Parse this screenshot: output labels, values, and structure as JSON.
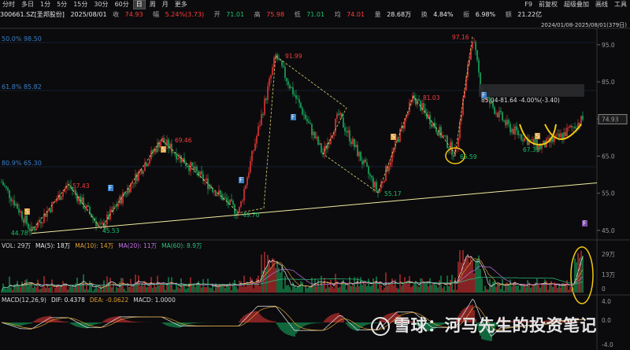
{
  "toolbar": {
    "periods": [
      "分时",
      "多日",
      "1分",
      "5分",
      "15分",
      "30分",
      "60分",
      "日",
      "周",
      "月",
      "更多"
    ],
    "active_period": "日",
    "right_menu": [
      "F9",
      "前复权",
      "超级叠加",
      "画线",
      "工具"
    ]
  },
  "info": {
    "code": "300661.SZ[圣邦股份]",
    "date": "2025/08/01",
    "close_label": "收",
    "close": "74.93",
    "change_label": "幅",
    "change": "5.24%(3.73)",
    "open_label": "开",
    "open": "71.01",
    "high_label": "高",
    "high": "75.98",
    "low_label": "低",
    "low": "71.01",
    "avg_label": "均",
    "avg": "74.01",
    "volume_label": "量",
    "volume": "28.68万",
    "turnover_label": "换",
    "turnover": "4.84%",
    "amplitude_label": "振",
    "amplitude": "6.98%",
    "amount_label": "额",
    "amount": "21.22亿"
  },
  "range_text": "2024/01/08-2025/08/01(379日)",
  "colors": {
    "up": "#ff3b3b",
    "down": "#19c26b",
    "zigzag": "#e8e070",
    "trend": "#f2eda0",
    "highlight": "#f2c811"
  },
  "chart_data": {
    "type": "candlestick",
    "y_axis_ticks": [
      "95.0",
      "85.0",
      "75.0",
      "65.0",
      "55.0",
      "45.0"
    ],
    "ylim": [
      43.5,
      99
    ],
    "current_price": "74.93",
    "fib_levels": [
      {
        "pct": "50.0%",
        "price": "98.50"
      },
      {
        "pct": "61.8%",
        "price": "85.82"
      },
      {
        "pct": "80.9%",
        "price": "65.30"
      }
    ],
    "pivots": [
      {
        "label": "44.78",
        "value": 44.78,
        "kind": "low"
      },
      {
        "label": "57.43",
        "value": 57.43,
        "kind": "high"
      },
      {
        "label": "45.53",
        "value": 45.53,
        "kind": "low"
      },
      {
        "label": "69.46",
        "value": 69.46,
        "kind": "high"
      },
      {
        "label": "49.70",
        "value": 49.7,
        "kind": "low"
      },
      {
        "label": "91.99",
        "value": 91.99,
        "kind": "high"
      },
      {
        "label": "65.59",
        "value": 65.59,
        "kind": "low"
      },
      {
        "label": "81.03",
        "value": 81.03,
        "kind": "high"
      },
      {
        "label": "55.17",
        "value": 55.17,
        "kind": "low"
      },
      {
        "label": "97.16",
        "value": 97.16,
        "kind": "high"
      },
      {
        "label": "67.36",
        "value": 67.36,
        "kind": "low"
      }
    ],
    "annotation": "85.04-81.64 -4.00%(-3.40)",
    "markers": [
      "S",
      "F",
      "S",
      "F",
      "F",
      "S",
      "F",
      "S",
      "F"
    ],
    "volume": {
      "legend": [
        "VOL: 29万",
        "MA(5): 18万",
        "MA(10): 14万",
        "MA(20): 11万",
        "MA(60): 8.9万"
      ],
      "ticks": [
        "29万",
        "13万",
        "0"
      ]
    },
    "macd": {
      "legend": [
        "MACD(12,26,9)",
        "DIF: 0.4378",
        "DEA: -0.0622",
        "MACD: 1.0000"
      ],
      "ticks": [
        "4.0",
        "0.0",
        "-4.0"
      ]
    }
  },
  "watermark": "雪球：河马先生的投资笔记"
}
